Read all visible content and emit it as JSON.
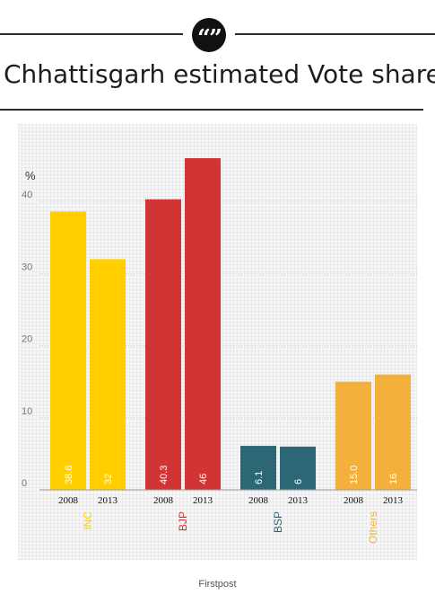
{
  "badge": {
    "glyph": "“”",
    "icon": "quote-icon"
  },
  "header": {
    "title": "Chhattisgarh estimated Vote share"
  },
  "source": "Firstpost",
  "chart_data": {
    "type": "bar",
    "title": "Chhattisgarh estimated Vote share",
    "ylabel": "%",
    "ylim": [
      0,
      47
    ],
    "yticks": [
      "0",
      "10",
      "20",
      "30",
      "40"
    ],
    "yticks_values": [
      0,
      10,
      20,
      30,
      40
    ],
    "grid": true,
    "groups": [
      {
        "party": "INC",
        "color": "#ffcf00",
        "bars": [
          {
            "year": "2008",
            "value": 38.6,
            "label": "38.6"
          },
          {
            "year": "2013",
            "value": 32,
            "label": "32"
          }
        ]
      },
      {
        "party": "BJP",
        "color": "#d03434",
        "bars": [
          {
            "year": "2008",
            "value": 40.3,
            "label": "40.3"
          },
          {
            "year": "2013",
            "value": 46,
            "label": "46"
          }
        ]
      },
      {
        "party": "BSP",
        "color": "#2c6776",
        "bars": [
          {
            "year": "2008",
            "value": 6.1,
            "label": "6.1"
          },
          {
            "year": "2013",
            "value": 6,
            "label": "6"
          }
        ]
      },
      {
        "party": "Others",
        "color": "#f3b03a",
        "bars": [
          {
            "year": "2008",
            "value": 15.0,
            "label": "15.0"
          },
          {
            "year": "2013",
            "value": 16,
            "label": "16"
          }
        ]
      }
    ]
  }
}
